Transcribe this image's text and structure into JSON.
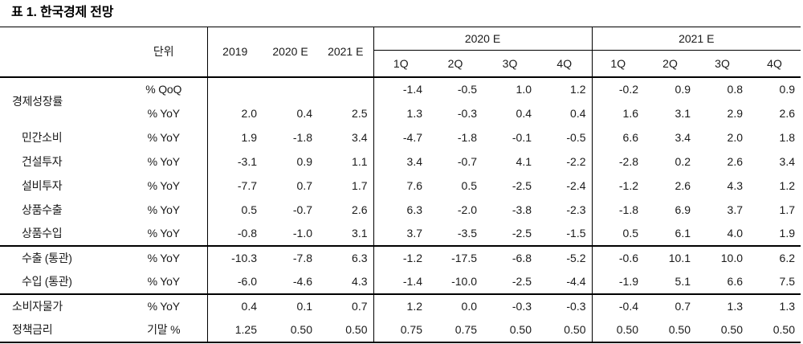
{
  "title": "표 1. 한국경제 전망",
  "table": {
    "unit_header": "단위",
    "year_headers": [
      "2019",
      "2020 E",
      "2021 E"
    ],
    "group_headers": [
      "2020 E",
      "2021 E"
    ],
    "quarter_headers": [
      "1Q",
      "2Q",
      "3Q",
      "4Q"
    ],
    "sections": [
      {
        "rows": [
          {
            "label": "경제성장률",
            "label_rowspan": 2,
            "indent": false,
            "unit": "% QoQ",
            "years": [
              "",
              "",
              ""
            ],
            "q2020": [
              "-1.4",
              "-0.5",
              "1.0",
              "1.2"
            ],
            "q2021": [
              "-0.2",
              "0.9",
              "0.8",
              "0.9"
            ]
          },
          {
            "label": null,
            "unit": "% YoY",
            "years": [
              "2.0",
              "0.4",
              "2.5"
            ],
            "q2020": [
              "1.3",
              "-0.3",
              "0.4",
              "0.4"
            ],
            "q2021": [
              "1.6",
              "3.1",
              "2.9",
              "2.6"
            ]
          },
          {
            "label": "민간소비",
            "indent": true,
            "unit": "% YoY",
            "years": [
              "1.9",
              "-1.8",
              "3.4"
            ],
            "q2020": [
              "-4.7",
              "-1.8",
              "-0.1",
              "-0.5"
            ],
            "q2021": [
              "6.6",
              "3.4",
              "2.0",
              "1.8"
            ]
          },
          {
            "label": "건설투자",
            "indent": true,
            "unit": "% YoY",
            "years": [
              "-3.1",
              "0.9",
              "1.1"
            ],
            "q2020": [
              "3.4",
              "-0.7",
              "4.1",
              "-2.2"
            ],
            "q2021": [
              "-2.8",
              "0.2",
              "2.6",
              "3.4"
            ]
          },
          {
            "label": "설비투자",
            "indent": true,
            "unit": "% YoY",
            "years": [
              "-7.7",
              "0.7",
              "1.7"
            ],
            "q2020": [
              "7.6",
              "0.5",
              "-2.5",
              "-2.4"
            ],
            "q2021": [
              "-1.2",
              "2.6",
              "4.3",
              "1.2"
            ]
          },
          {
            "label": "상품수출",
            "indent": true,
            "unit": "% YoY",
            "years": [
              "0.5",
              "-0.7",
              "2.6"
            ],
            "q2020": [
              "6.3",
              "-2.0",
              "-3.8",
              "-2.3"
            ],
            "q2021": [
              "-1.8",
              "6.9",
              "3.7",
              "1.7"
            ]
          },
          {
            "label": "상품수입",
            "indent": true,
            "unit": "% YoY",
            "years": [
              "-0.8",
              "-1.0",
              "3.1"
            ],
            "q2020": [
              "3.7",
              "-3.5",
              "-2.5",
              "-1.5"
            ],
            "q2021": [
              "0.5",
              "6.1",
              "4.0",
              "1.9"
            ]
          }
        ]
      },
      {
        "rows": [
          {
            "label": "수출 (통관)",
            "indent": true,
            "unit": "% YoY",
            "years": [
              "-10.3",
              "-7.8",
              "6.3"
            ],
            "q2020": [
              "-1.2",
              "-17.5",
              "-6.8",
              "-5.2"
            ],
            "q2021": [
              "-0.6",
              "10.1",
              "10.0",
              "6.2"
            ]
          },
          {
            "label": "수입 (통관)",
            "indent": true,
            "unit": "% YoY",
            "years": [
              "-6.0",
              "-4.6",
              "4.3"
            ],
            "q2020": [
              "-1.4",
              "-10.0",
              "-2.5",
              "-4.4"
            ],
            "q2021": [
              "-1.9",
              "5.1",
              "6.6",
              "7.5"
            ]
          }
        ]
      },
      {
        "rows": [
          {
            "label": "소비자물가",
            "indent": false,
            "unit": "% YoY",
            "years": [
              "0.4",
              "0.1",
              "0.7"
            ],
            "q2020": [
              "1.2",
              "0.0",
              "-0.3",
              "-0.3"
            ],
            "q2021": [
              "-0.4",
              "0.7",
              "1.3",
              "1.3"
            ]
          },
          {
            "label": "정책금리",
            "indent": false,
            "unit": "기말 %",
            "years": [
              "1.25",
              "0.50",
              "0.50"
            ],
            "q2020": [
              "0.75",
              "0.75",
              "0.50",
              "0.50"
            ],
            "q2021": [
              "0.50",
              "0.50",
              "0.50",
              "0.50"
            ]
          }
        ]
      }
    ]
  }
}
